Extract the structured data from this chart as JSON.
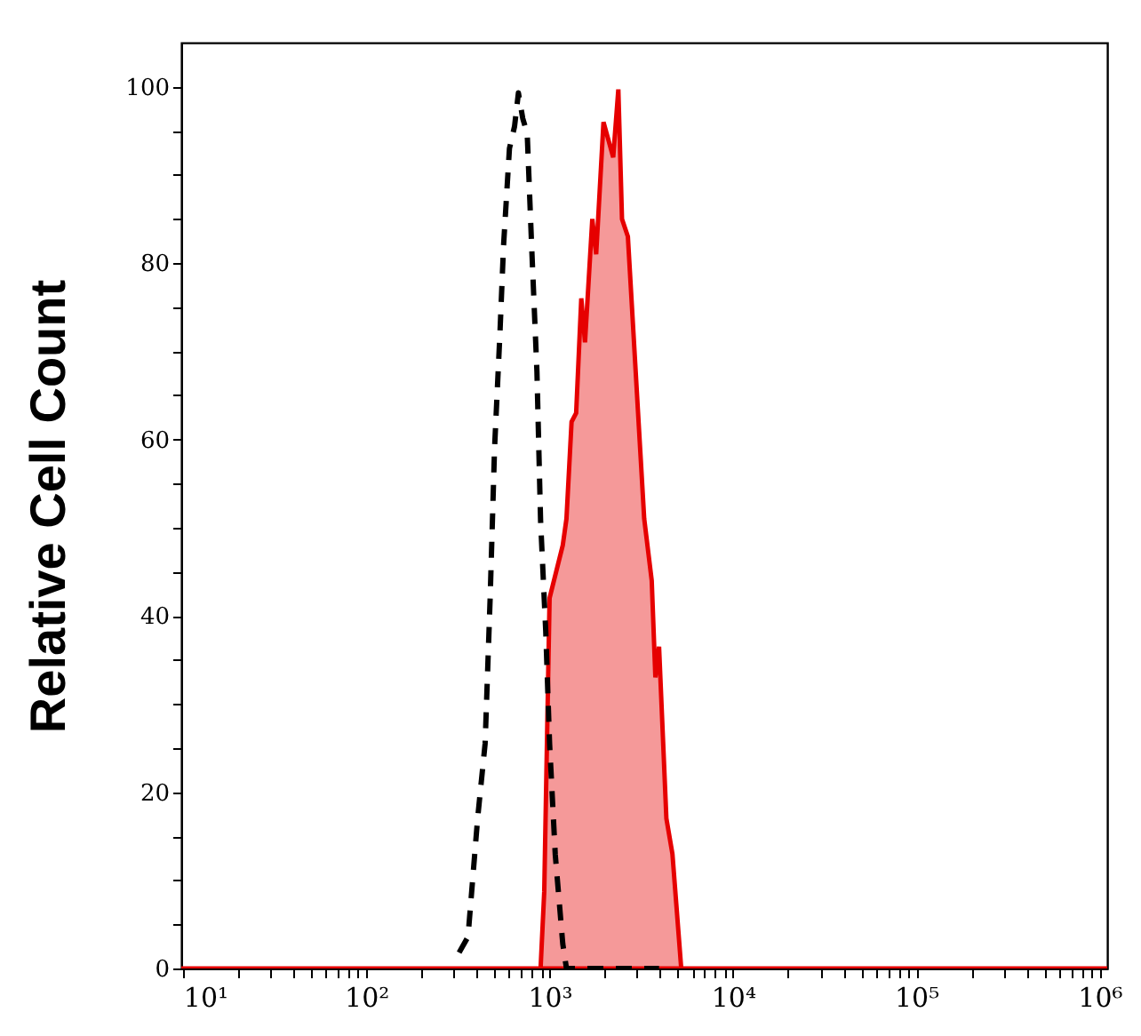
{
  "chart_data": {
    "type": "area",
    "ylabel": "Relative Cell Count",
    "log": "x",
    "grid": false,
    "xlim": [
      9.8,
      1100000
    ],
    "ylim": [
      0,
      105
    ],
    "xticks": [
      {
        "value": 10,
        "label": "10¹"
      },
      {
        "value": 20,
        "label": null
      },
      {
        "value": 30,
        "label": null
      },
      {
        "value": 40,
        "label": null
      },
      {
        "value": 50,
        "label": null
      },
      {
        "value": 60,
        "label": null
      },
      {
        "value": 70,
        "label": null
      },
      {
        "value": 80,
        "label": null
      },
      {
        "value": 90,
        "label": null
      },
      {
        "value": 100,
        "label": "10²"
      },
      {
        "value": 200,
        "label": null
      },
      {
        "value": 300,
        "label": null
      },
      {
        "value": 400,
        "label": null
      },
      {
        "value": 500,
        "label": null
      },
      {
        "value": 600,
        "label": null
      },
      {
        "value": 700,
        "label": null
      },
      {
        "value": 800,
        "label": null
      },
      {
        "value": 900,
        "label": null
      },
      {
        "value": 1000,
        "label": "10³"
      },
      {
        "value": 2000,
        "label": null
      },
      {
        "value": 3000,
        "label": null
      },
      {
        "value": 4000,
        "label": null
      },
      {
        "value": 5000,
        "label": null
      },
      {
        "value": 6000,
        "label": null
      },
      {
        "value": 7000,
        "label": null
      },
      {
        "value": 8000,
        "label": null
      },
      {
        "value": 9000,
        "label": null
      },
      {
        "value": 10000,
        "label": "10⁴"
      },
      {
        "value": 20000,
        "label": null
      },
      {
        "value": 30000,
        "label": null
      },
      {
        "value": 40000,
        "label": null
      },
      {
        "value": 50000,
        "label": null
      },
      {
        "value": 60000,
        "label": null
      },
      {
        "value": 70000,
        "label": null
      },
      {
        "value": 80000,
        "label": null
      },
      {
        "value": 90000,
        "label": null
      },
      {
        "value": 100000,
        "label": "10⁵"
      },
      {
        "value": 200000,
        "label": null
      },
      {
        "value": 300000,
        "label": null
      },
      {
        "value": 400000,
        "label": null
      },
      {
        "value": 500000,
        "label": null
      },
      {
        "value": 600000,
        "label": null
      },
      {
        "value": 700000,
        "label": null
      },
      {
        "value": 800000,
        "label": null
      },
      {
        "value": 900000,
        "label": null
      },
      {
        "value": 1000000,
        "label": "10⁶"
      }
    ],
    "yticks": [
      0,
      {
        "value": 5,
        "label": null
      },
      {
        "value": 10,
        "label": null
      },
      {
        "value": 15,
        "label": null
      },
      20,
      {
        "value": 25,
        "label": null
      },
      {
        "value": 30,
        "label": null
      },
      {
        "value": 35,
        "label": null
      },
      40,
      {
        "value": 45,
        "label": null
      },
      {
        "value": 50,
        "label": null
      },
      {
        "value": 55,
        "label": null
      },
      60,
      {
        "value": 65,
        "label": null
      },
      {
        "value": 70,
        "label": null
      },
      {
        "value": 75,
        "label": null
      },
      80,
      {
        "value": 85,
        "label": null
      },
      {
        "value": 90,
        "label": null
      },
      {
        "value": 95,
        "label": null
      },
      100
    ],
    "series": [
      {
        "type": "area",
        "color": "#e60000",
        "x": [
          9.8,
          893,
          935,
          1000,
          1180,
          1236,
          1318,
          1396,
          1489,
          1560,
          1710,
          1795,
          1968,
          2223,
          2371,
          2483,
          2673,
          3281,
          3606,
          3776,
          3954,
          4335,
          4677,
          5224,
          1100000
        ],
        "values": [
          0,
          0,
          8.7,
          42,
          48,
          51,
          62,
          63,
          76,
          71,
          85,
          81,
          96,
          92,
          99.7,
          85,
          83,
          51,
          44,
          33,
          36.5,
          17,
          13,
          0,
          0
        ]
      },
      {
        "type": "line",
        "color": "#000000",
        "line_style": "dashed",
        "x": [
          321,
          359,
          405,
          445,
          474,
          501,
          536,
          561,
          604,
          644,
          676,
          714,
          755,
          798,
          853,
          893,
          953,
          1000,
          1074,
          1180,
          1236,
          3954
        ],
        "values": [
          1.8,
          3.6,
          17,
          25.5,
          42,
          59,
          72,
          82,
          93,
          95.5,
          99.3,
          96.4,
          94.7,
          82,
          67.7,
          50.8,
          38.2,
          25.5,
          12.9,
          2.8,
          0,
          0
        ]
      }
    ]
  }
}
